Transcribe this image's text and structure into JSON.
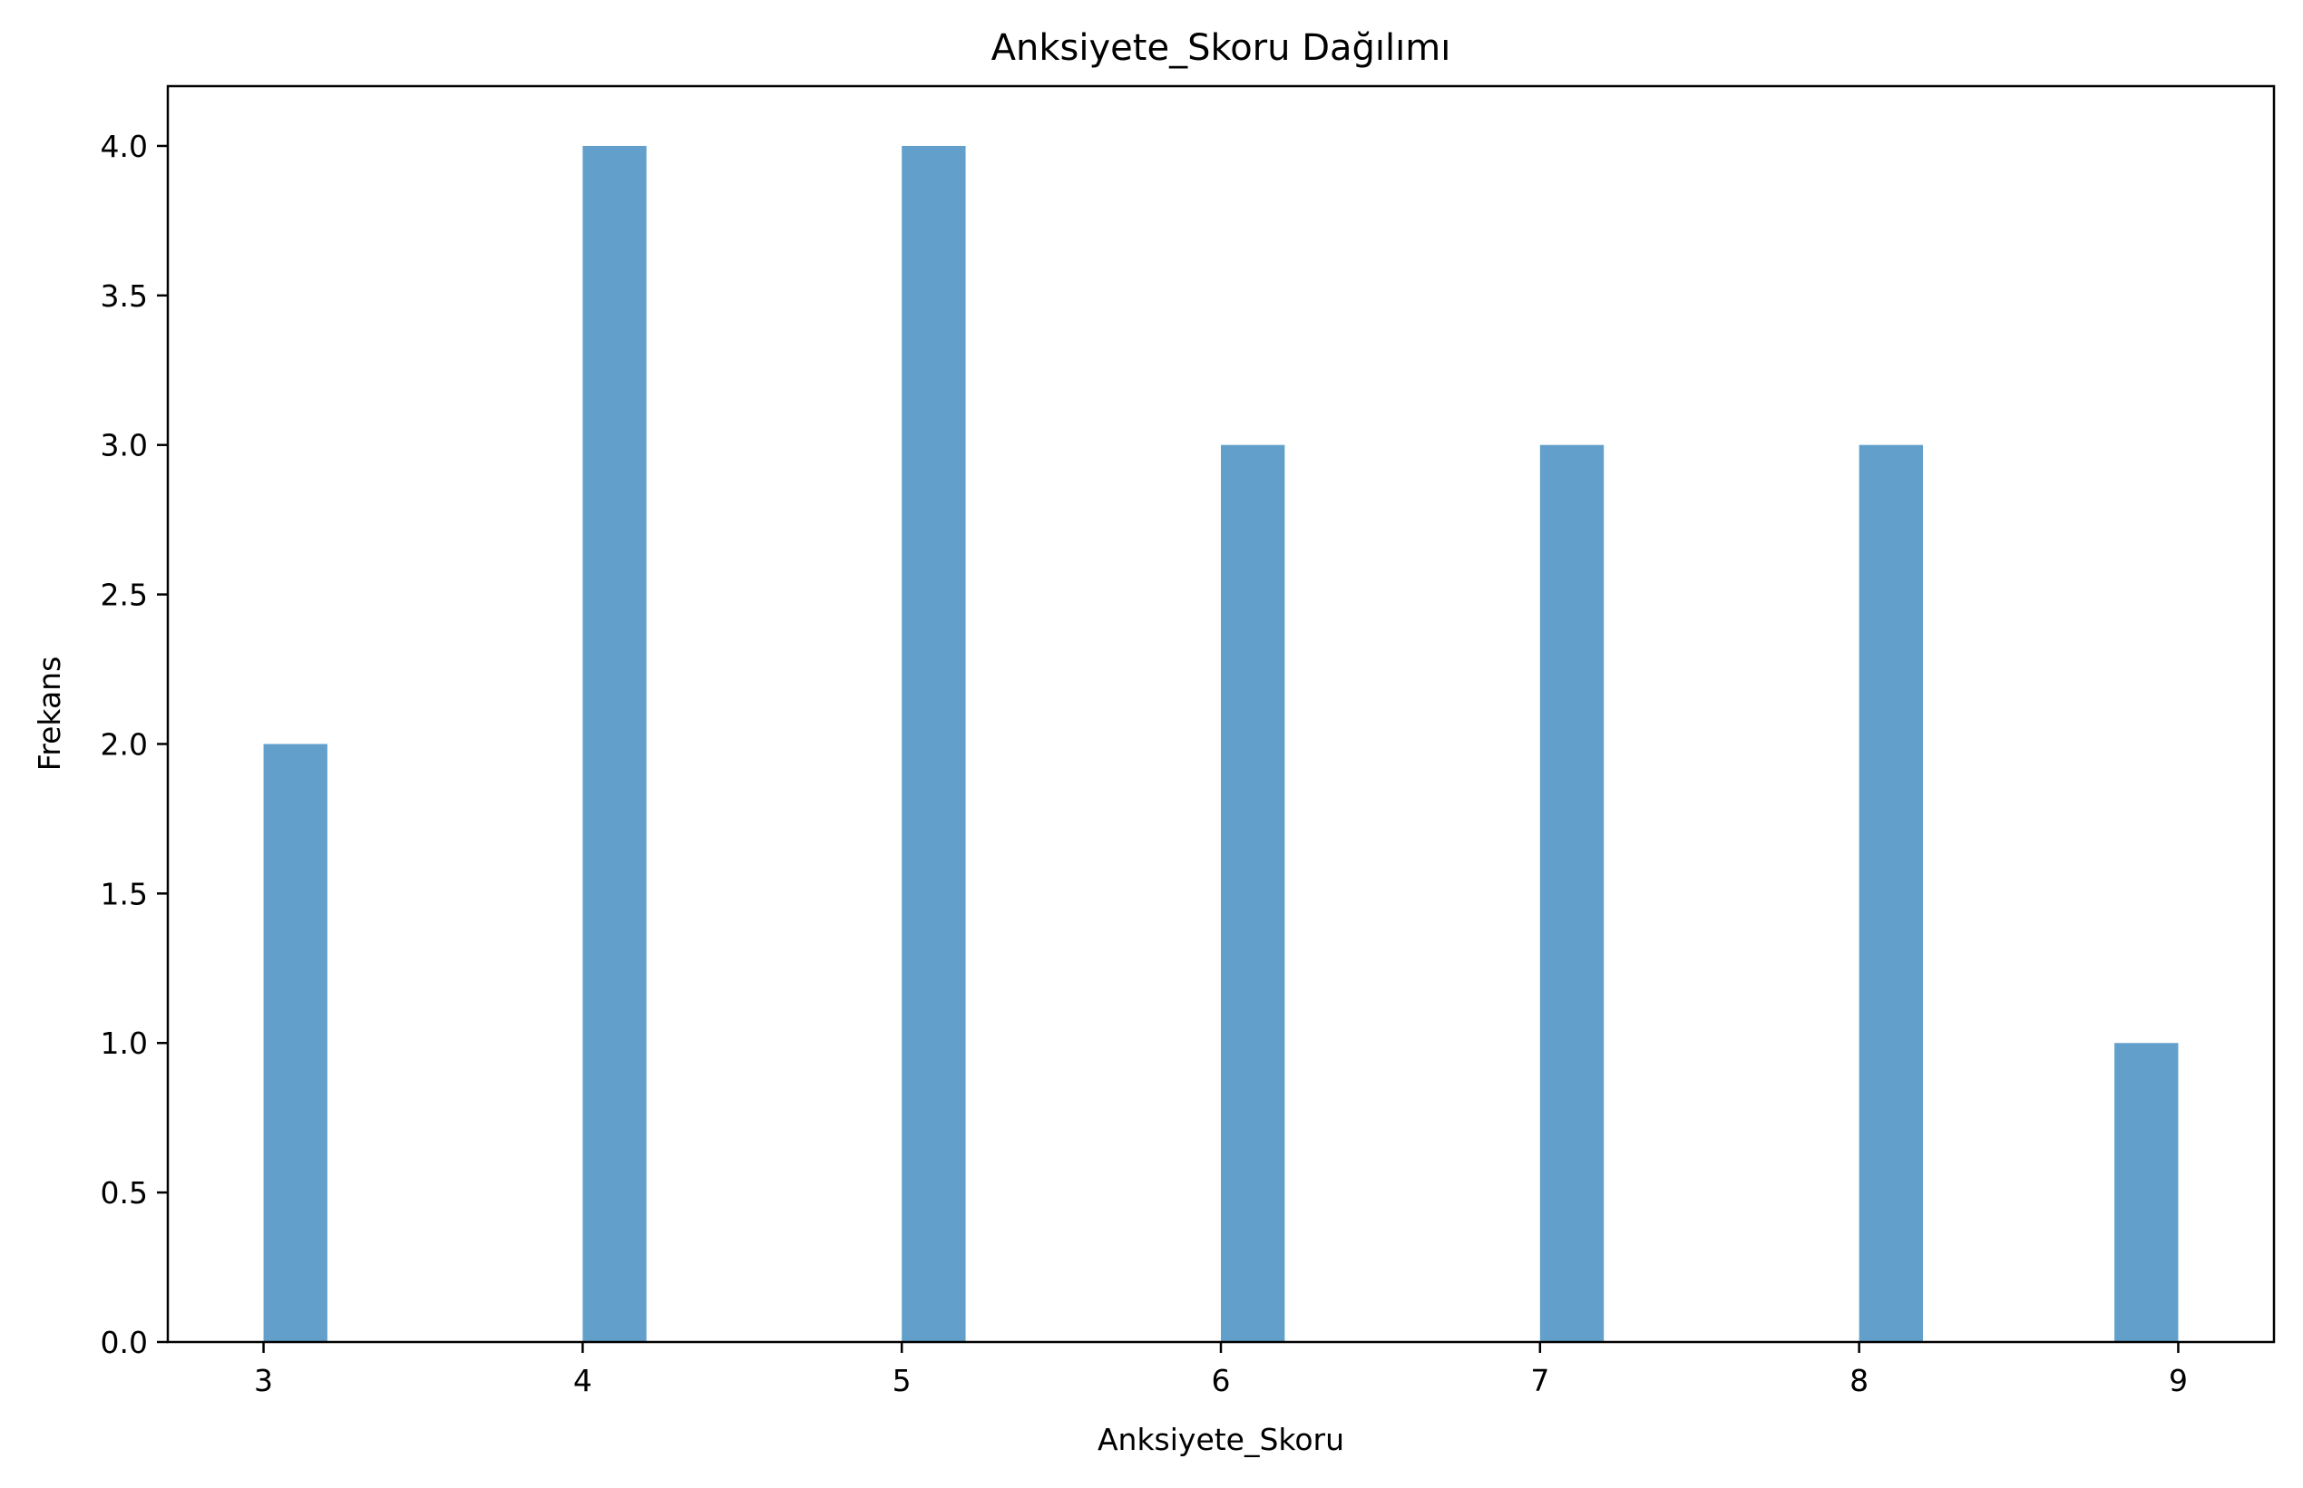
{
  "chart_data": {
    "type": "bar",
    "title": "Anksiyete_Skoru Dağılımı",
    "xlabel": "Anksiyete_Skoru",
    "ylabel": "Frekans",
    "bar_color": "#62a0cb",
    "xlim": [
      2.7,
      9.3
    ],
    "ylim": [
      0,
      4.2
    ],
    "xticks": [
      3,
      4,
      5,
      6,
      7,
      8,
      9
    ],
    "xtick_labels": [
      "3",
      "4",
      "5",
      "6",
      "7",
      "8",
      "9"
    ],
    "yticks": [
      0,
      0.5,
      1,
      1.5,
      2,
      2.5,
      3,
      3.5,
      4
    ],
    "ytick_labels": [
      "0.0",
      "0.5",
      "1.0",
      "1.5",
      "2.0",
      "2.5",
      "3.0",
      "3.5",
      "4.0"
    ],
    "bins": [
      {
        "x0": 3.0,
        "x1": 3.2,
        "value": 2
      },
      {
        "x0": 4.0,
        "x1": 4.2,
        "value": 4
      },
      {
        "x0": 5.0,
        "x1": 5.2,
        "value": 4
      },
      {
        "x0": 6.0,
        "x1": 6.2,
        "value": 3
      },
      {
        "x0": 7.0,
        "x1": 7.2,
        "value": 3
      },
      {
        "x0": 8.0,
        "x1": 8.2,
        "value": 3
      },
      {
        "x0": 8.8,
        "x1": 9.0,
        "value": 1
      }
    ],
    "grid": false,
    "legend": "none"
  }
}
